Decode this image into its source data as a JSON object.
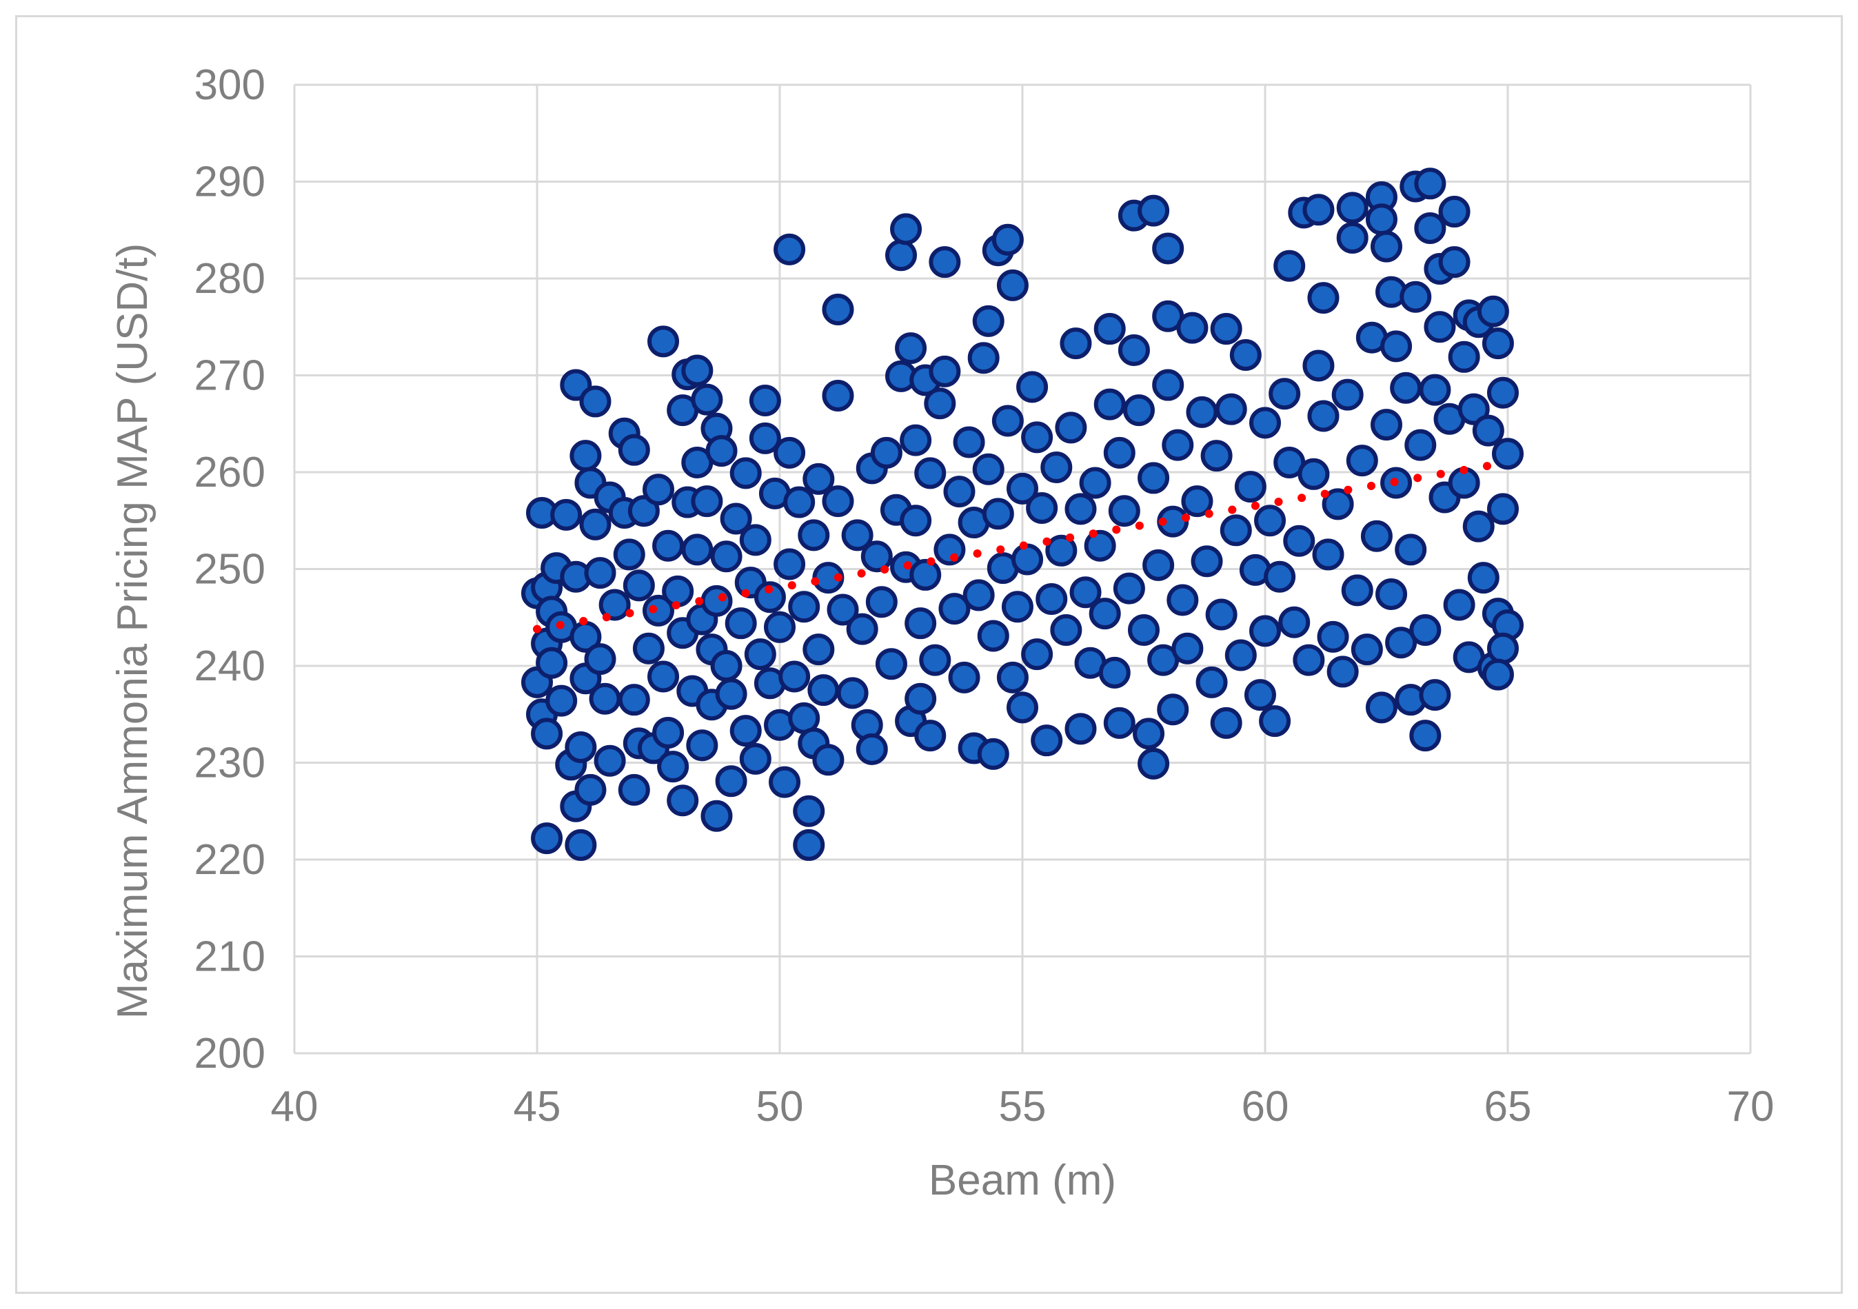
{
  "chart_data": {
    "type": "scatter",
    "title": "",
    "xlabel": "Beam (m)",
    "ylabel": "Maximum Ammonia Pricing MAP (USD/t)",
    "xlim": [
      40,
      70
    ],
    "ylim": [
      200,
      300
    ],
    "x_ticks": [
      40,
      45,
      50,
      55,
      60,
      65,
      70
    ],
    "y_ticks": [
      200,
      210,
      220,
      230,
      240,
      250,
      260,
      270,
      280,
      290,
      300
    ],
    "grid": true,
    "legend": "none",
    "marker_fill": "#1a64c4",
    "marker_edge": "#0d1f6b",
    "trendline_color": "#ff0000",
    "gridline_color": "#d9d9d9",
    "axis_text_color": "#7f7f7f",
    "series": [
      {
        "points": [
          [
            45.0,
            247.5
          ],
          [
            45.0,
            238.3
          ],
          [
            45.1,
            255.8
          ],
          [
            45.1,
            235.0
          ],
          [
            45.2,
            222.2
          ],
          [
            45.2,
            248.1
          ],
          [
            45.2,
            242.3
          ],
          [
            45.2,
            233.0
          ],
          [
            45.3,
            245.6
          ],
          [
            45.3,
            240.3
          ],
          [
            45.4,
            250.1
          ],
          [
            45.5,
            244.0
          ],
          [
            45.5,
            236.4
          ],
          [
            45.6,
            255.6
          ],
          [
            45.7,
            229.8
          ],
          [
            45.8,
            269.0
          ],
          [
            45.8,
            249.2
          ],
          [
            45.8,
            225.5
          ],
          [
            45.9,
            231.6
          ],
          [
            45.9,
            221.5
          ],
          [
            46.0,
            261.7
          ],
          [
            46.0,
            243.0
          ],
          [
            46.0,
            238.7
          ],
          [
            46.1,
            258.9
          ],
          [
            46.1,
            227.2
          ],
          [
            46.2,
            267.3
          ],
          [
            46.2,
            254.6
          ],
          [
            46.3,
            249.6
          ],
          [
            46.3,
            240.7
          ],
          [
            46.4,
            236.6
          ],
          [
            46.5,
            257.4
          ],
          [
            46.5,
            230.2
          ],
          [
            46.6,
            246.3
          ],
          [
            46.8,
            264.0
          ],
          [
            46.8,
            255.8
          ],
          [
            46.9,
            251.5
          ],
          [
            47.0,
            262.3
          ],
          [
            47.0,
            236.5
          ],
          [
            47.0,
            227.2
          ],
          [
            47.1,
            248.3
          ],
          [
            47.1,
            232.0
          ],
          [
            47.2,
            256.0
          ],
          [
            47.3,
            241.8
          ],
          [
            47.4,
            231.5
          ],
          [
            47.5,
            258.2
          ],
          [
            47.5,
            245.7
          ],
          [
            47.6,
            273.5
          ],
          [
            47.6,
            238.9
          ],
          [
            47.7,
            252.4
          ],
          [
            47.7,
            233.1
          ],
          [
            47.8,
            229.6
          ],
          [
            47.9,
            247.7
          ],
          [
            48.0,
            266.4
          ],
          [
            48.0,
            243.4
          ],
          [
            48.0,
            226.1
          ],
          [
            48.1,
            270.1
          ],
          [
            48.1,
            256.9
          ],
          [
            48.2,
            237.4
          ],
          [
            48.3,
            270.5
          ],
          [
            48.3,
            252.0
          ],
          [
            48.3,
            261.0
          ],
          [
            48.4,
            244.8
          ],
          [
            48.4,
            231.8
          ],
          [
            48.5,
            267.5
          ],
          [
            48.5,
            257.0
          ],
          [
            48.6,
            241.7
          ],
          [
            48.6,
            236.0
          ],
          [
            48.7,
            264.5
          ],
          [
            48.7,
            224.5
          ],
          [
            48.7,
            246.7
          ],
          [
            48.8,
            262.2
          ],
          [
            48.9,
            251.3
          ],
          [
            48.9,
            240.0
          ],
          [
            49.0,
            228.1
          ],
          [
            49.0,
            237.1
          ],
          [
            49.1,
            255.2
          ],
          [
            49.2,
            244.4
          ],
          [
            49.3,
            259.9
          ],
          [
            49.3,
            233.3
          ],
          [
            49.4,
            248.6
          ],
          [
            49.5,
            230.4
          ],
          [
            49.5,
            253.0
          ],
          [
            49.6,
            241.2
          ],
          [
            49.7,
            263.5
          ],
          [
            49.7,
            267.4
          ],
          [
            49.8,
            247.1
          ],
          [
            49.8,
            238.2
          ],
          [
            49.9,
            257.8
          ],
          [
            50.0,
            233.9
          ],
          [
            50.0,
            244.0
          ],
          [
            50.1,
            228.0
          ],
          [
            50.2,
            262.0
          ],
          [
            50.2,
            283.0
          ],
          [
            50.2,
            250.5
          ],
          [
            50.3,
            238.9
          ],
          [
            50.4,
            256.9
          ],
          [
            50.5,
            246.1
          ],
          [
            50.5,
            234.6
          ],
          [
            50.6,
            225.0
          ],
          [
            50.6,
            221.5
          ],
          [
            50.7,
            253.5
          ],
          [
            50.7,
            232.0
          ],
          [
            50.8,
            259.3
          ],
          [
            50.8,
            241.7
          ],
          [
            50.9,
            237.5
          ],
          [
            51.0,
            249.1
          ],
          [
            51.0,
            230.3
          ],
          [
            51.2,
            276.8
          ],
          [
            51.2,
            267.9
          ],
          [
            51.2,
            257.0
          ],
          [
            51.3,
            245.8
          ],
          [
            51.5,
            237.2
          ],
          [
            51.6,
            253.5
          ],
          [
            51.7,
            243.8
          ],
          [
            51.8,
            233.9
          ],
          [
            51.9,
            260.4
          ],
          [
            51.9,
            231.4
          ],
          [
            52.0,
            251.3
          ],
          [
            52.1,
            246.6
          ],
          [
            52.2,
            262.0
          ],
          [
            52.3,
            240.2
          ],
          [
            52.4,
            256.1
          ],
          [
            52.5,
            282.4
          ],
          [
            52.5,
            269.9
          ],
          [
            52.6,
            285.1
          ],
          [
            52.6,
            250.2
          ],
          [
            52.7,
            272.8
          ],
          [
            52.7,
            234.3
          ],
          [
            52.8,
            263.3
          ],
          [
            52.8,
            255.0
          ],
          [
            52.9,
            244.4
          ],
          [
            52.9,
            236.6
          ],
          [
            53.0,
            269.5
          ],
          [
            53.0,
            249.4
          ],
          [
            53.1,
            259.9
          ],
          [
            53.1,
            232.8
          ],
          [
            53.2,
            240.6
          ],
          [
            53.3,
            267.1
          ],
          [
            53.4,
            281.7
          ],
          [
            53.4,
            270.4
          ],
          [
            53.5,
            252.0
          ],
          [
            53.6,
            245.9
          ],
          [
            53.7,
            258.0
          ],
          [
            53.8,
            238.8
          ],
          [
            53.9,
            263.1
          ],
          [
            54.0,
            254.8
          ],
          [
            54.0,
            231.5
          ],
          [
            54.1,
            247.3
          ],
          [
            54.2,
            271.8
          ],
          [
            54.3,
            275.6
          ],
          [
            54.3,
            260.3
          ],
          [
            54.4,
            243.1
          ],
          [
            54.4,
            230.9
          ],
          [
            54.5,
            282.9
          ],
          [
            54.5,
            255.7
          ],
          [
            54.6,
            250.1
          ],
          [
            54.7,
            284.0
          ],
          [
            54.7,
            265.3
          ],
          [
            54.8,
            279.3
          ],
          [
            54.8,
            238.8
          ],
          [
            54.9,
            246.1
          ],
          [
            55.0,
            258.3
          ],
          [
            55.0,
            235.7
          ],
          [
            55.1,
            251.0
          ],
          [
            55.2,
            268.8
          ],
          [
            55.3,
            241.2
          ],
          [
            55.3,
            263.6
          ],
          [
            55.4,
            256.3
          ],
          [
            55.5,
            232.3
          ],
          [
            55.6,
            246.9
          ],
          [
            55.7,
            260.5
          ],
          [
            55.8,
            251.9
          ],
          [
            55.9,
            243.7
          ],
          [
            56.0,
            264.6
          ],
          [
            56.1,
            273.3
          ],
          [
            56.2,
            256.2
          ],
          [
            56.2,
            233.5
          ],
          [
            56.3,
            247.6
          ],
          [
            56.4,
            240.3
          ],
          [
            56.5,
            258.9
          ],
          [
            56.6,
            252.4
          ],
          [
            56.7,
            245.4
          ],
          [
            56.8,
            274.8
          ],
          [
            56.8,
            267.0
          ],
          [
            56.9,
            239.3
          ],
          [
            57.0,
            262.0
          ],
          [
            57.0,
            234.1
          ],
          [
            57.1,
            256.0
          ],
          [
            57.2,
            248.0
          ],
          [
            57.3,
            286.5
          ],
          [
            57.3,
            272.6
          ],
          [
            57.4,
            266.4
          ],
          [
            57.5,
            243.7
          ],
          [
            57.6,
            233.0
          ],
          [
            57.7,
            287.0
          ],
          [
            57.7,
            259.4
          ],
          [
            57.7,
            229.9
          ],
          [
            57.8,
            250.4
          ],
          [
            57.9,
            240.6
          ],
          [
            58.0,
            276.1
          ],
          [
            58.0,
            269.0
          ],
          [
            58.0,
            283.1
          ],
          [
            58.1,
            254.9
          ],
          [
            58.1,
            235.5
          ],
          [
            58.2,
            262.8
          ],
          [
            58.3,
            246.8
          ],
          [
            58.4,
            241.8
          ],
          [
            58.5,
            274.9
          ],
          [
            58.6,
            257.0
          ],
          [
            58.7,
            266.2
          ],
          [
            58.8,
            250.8
          ],
          [
            58.9,
            238.3
          ],
          [
            59.0,
            261.7
          ],
          [
            59.1,
            245.3
          ],
          [
            59.2,
            234.1
          ],
          [
            59.2,
            274.8
          ],
          [
            59.3,
            266.5
          ],
          [
            59.4,
            254.0
          ],
          [
            59.5,
            241.1
          ],
          [
            59.6,
            272.1
          ],
          [
            59.7,
            258.5
          ],
          [
            59.8,
            249.9
          ],
          [
            59.9,
            237.0
          ],
          [
            60.0,
            265.1
          ],
          [
            60.0,
            243.6
          ],
          [
            60.1,
            255.0
          ],
          [
            60.2,
            234.3
          ],
          [
            60.3,
            249.2
          ],
          [
            60.4,
            268.1
          ],
          [
            60.5,
            281.3
          ],
          [
            60.5,
            261.0
          ],
          [
            60.6,
            244.5
          ],
          [
            60.7,
            252.9
          ],
          [
            60.8,
            286.8
          ],
          [
            60.9,
            240.6
          ],
          [
            61.0,
            259.8
          ],
          [
            61.1,
            287.1
          ],
          [
            61.1,
            271.0
          ],
          [
            61.2,
            278.0
          ],
          [
            61.2,
            265.8
          ],
          [
            61.3,
            251.5
          ],
          [
            61.4,
            243.0
          ],
          [
            61.5,
            256.7
          ],
          [
            61.6,
            239.4
          ],
          [
            61.7,
            268.0
          ],
          [
            61.8,
            284.2
          ],
          [
            61.8,
            287.3
          ],
          [
            61.9,
            247.8
          ],
          [
            62.0,
            261.2
          ],
          [
            62.1,
            241.7
          ],
          [
            62.2,
            273.9
          ],
          [
            62.3,
            253.4
          ],
          [
            62.4,
            288.4
          ],
          [
            62.4,
            286.1
          ],
          [
            62.4,
            235.7
          ],
          [
            62.5,
            283.3
          ],
          [
            62.5,
            264.9
          ],
          [
            62.6,
            278.6
          ],
          [
            62.6,
            247.4
          ],
          [
            62.7,
            258.9
          ],
          [
            62.7,
            273.0
          ],
          [
            62.8,
            242.4
          ],
          [
            62.9,
            268.7
          ],
          [
            63.0,
            252.0
          ],
          [
            63.0,
            236.5
          ],
          [
            63.1,
            289.5
          ],
          [
            63.1,
            278.1
          ],
          [
            63.2,
            262.8
          ],
          [
            63.3,
            232.8
          ],
          [
            63.3,
            243.7
          ],
          [
            63.4,
            289.8
          ],
          [
            63.4,
            285.2
          ],
          [
            63.5,
            268.5
          ],
          [
            63.5,
            237.0
          ],
          [
            63.6,
            275.0
          ],
          [
            63.6,
            281.0
          ],
          [
            63.7,
            257.4
          ],
          [
            63.8,
            265.5
          ],
          [
            63.9,
            286.9
          ],
          [
            63.9,
            281.7
          ],
          [
            64.0,
            246.3
          ],
          [
            64.1,
            271.9
          ],
          [
            64.1,
            258.9
          ],
          [
            64.2,
            276.2
          ],
          [
            64.2,
            240.9
          ],
          [
            64.3,
            266.5
          ],
          [
            64.4,
            254.4
          ],
          [
            64.4,
            275.5
          ],
          [
            64.5,
            249.1
          ],
          [
            64.6,
            264.3
          ],
          [
            64.7,
            276.6
          ],
          [
            64.7,
            239.8
          ],
          [
            64.8,
            273.3
          ],
          [
            64.8,
            245.4
          ],
          [
            64.9,
            268.2
          ],
          [
            64.9,
            256.2
          ],
          [
            65.0,
            261.9
          ],
          [
            65.0,
            244.2
          ],
          [
            64.9,
            241.8
          ],
          [
            64.8,
            239.1
          ]
        ]
      }
    ],
    "trendline": {
      "type": "linear",
      "x": [
        45,
        65
      ],
      "y": [
        243.8,
        261.0
      ]
    }
  }
}
